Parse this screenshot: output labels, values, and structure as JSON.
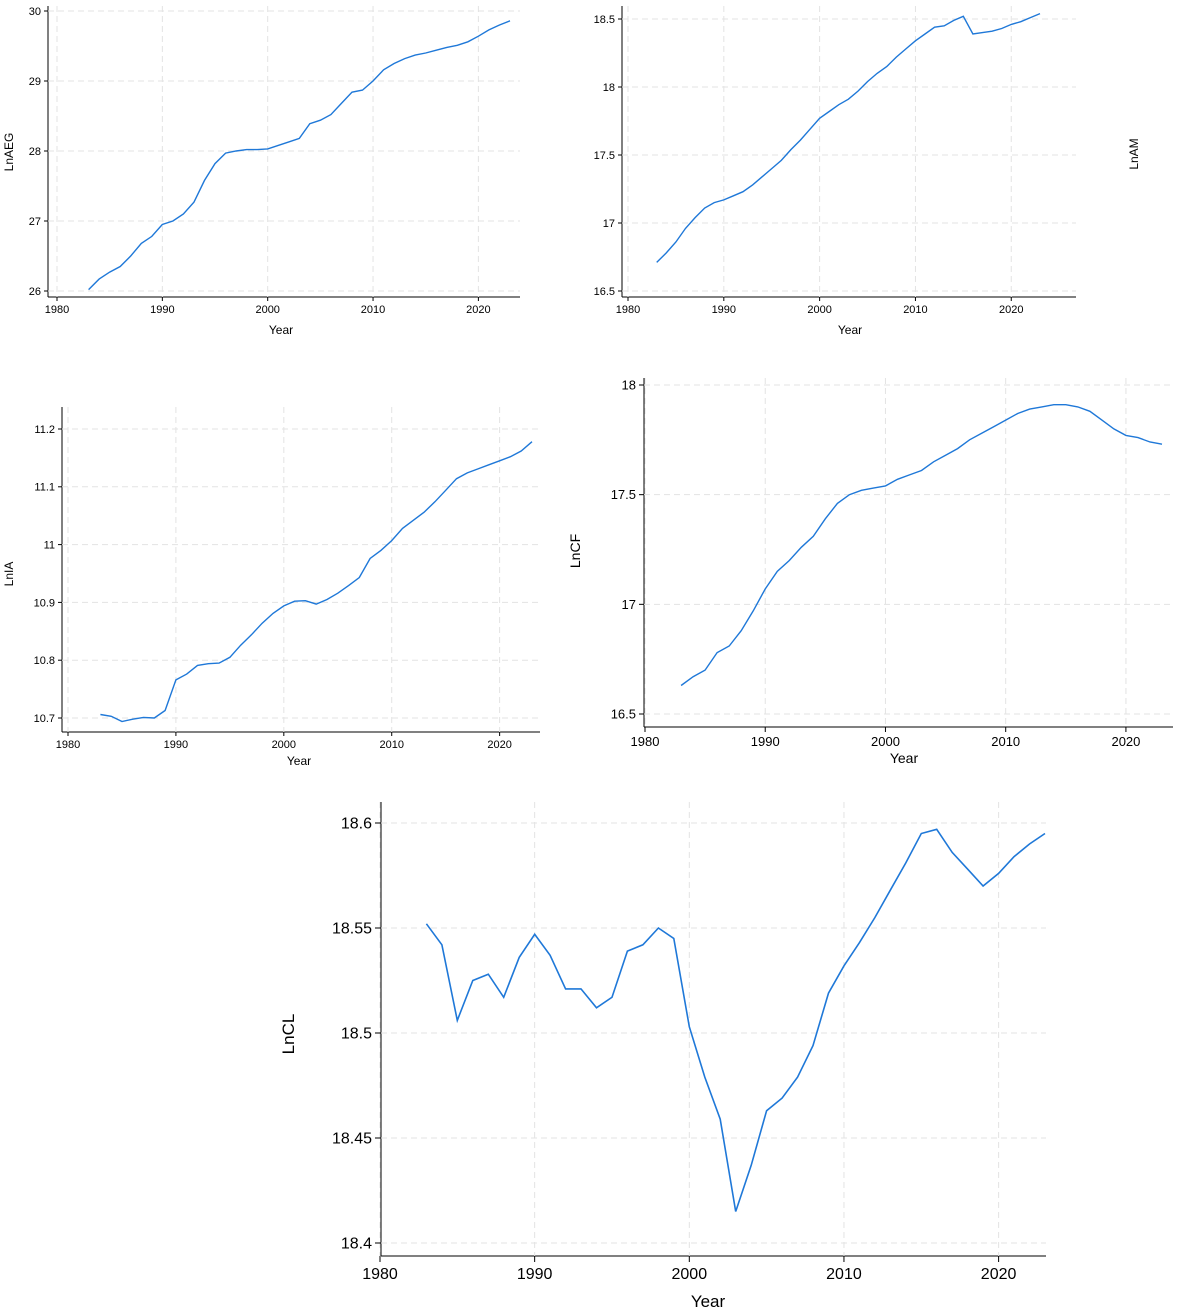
{
  "chart_data": [
    {
      "type": "line",
      "xlabel": "Year",
      "ylabel": "LnAEG",
      "xlim": [
        1980,
        2023
      ],
      "ylim": [
        26,
        30
      ],
      "xticks": [
        1980,
        1990,
        2000,
        2010,
        2020
      ],
      "yticks": [
        26,
        27,
        28,
        29,
        30
      ],
      "ytick_labels": [
        "26",
        "27",
        "28",
        "29",
        "30"
      ],
      "grid": true,
      "color": "#1f78d8",
      "x": [
        1983,
        1984,
        1985,
        1986,
        1987,
        1988,
        1989,
        1990,
        1991,
        1992,
        1993,
        1994,
        1995,
        1996,
        1997,
        1998,
        1999,
        2000,
        2001,
        2002,
        2003,
        2004,
        2005,
        2006,
        2007,
        2008,
        2009,
        2010,
        2011,
        2012,
        2013,
        2014,
        2015,
        2016,
        2017,
        2018,
        2019,
        2020,
        2021,
        2022,
        2023
      ],
      "y": [
        26.02,
        26.17,
        26.27,
        26.35,
        26.5,
        26.68,
        26.78,
        26.95,
        27.0,
        27.1,
        27.27,
        27.58,
        27.82,
        27.97,
        28.0,
        28.02,
        28.02,
        28.03,
        28.08,
        28.13,
        28.18,
        28.39,
        28.44,
        28.52,
        28.68,
        28.84,
        28.87,
        29.0,
        29.16,
        29.25,
        29.32,
        29.37,
        29.4,
        29.44,
        29.48,
        29.51,
        29.56,
        29.64,
        29.73,
        29.8,
        29.86
      ]
    },
    {
      "type": "line",
      "xlabel": "Year",
      "ylabel": "LnAM",
      "xlim": [
        1980,
        2023
      ],
      "ylim": [
        16.5,
        18.5
      ],
      "xticks": [
        1980,
        1990,
        2000,
        2010,
        2020
      ],
      "yticks": [
        16.5,
        17,
        17.5,
        18,
        18.5
      ],
      "ytick_labels": [
        "16.5",
        "17",
        "17.5",
        "18",
        "18.5"
      ],
      "grid": true,
      "color": "#1f78d8",
      "x": [
        1983,
        1984,
        1985,
        1986,
        1987,
        1988,
        1989,
        1990,
        1991,
        1992,
        1993,
        1994,
        1995,
        1996,
        1997,
        1998,
        1999,
        2000,
        2001,
        2002,
        2003,
        2004,
        2005,
        2006,
        2007,
        2008,
        2009,
        2010,
        2011,
        2012,
        2013,
        2014,
        2015,
        2016,
        2017,
        2018,
        2019,
        2020,
        2021,
        2022,
        2023
      ],
      "y": [
        16.71,
        16.78,
        16.86,
        16.96,
        17.04,
        17.11,
        17.15,
        17.17,
        17.2,
        17.23,
        17.28,
        17.34,
        17.4,
        17.46,
        17.54,
        17.61,
        17.69,
        17.77,
        17.82,
        17.87,
        17.91,
        17.97,
        18.04,
        18.1,
        18.15,
        18.22,
        18.28,
        18.34,
        18.39,
        18.44,
        18.45,
        18.49,
        18.52,
        18.39,
        18.4,
        18.41,
        18.43,
        18.46,
        18.48,
        18.51,
        18.54
      ]
    },
    {
      "type": "line",
      "xlabel": "Year",
      "ylabel": "LnIA",
      "xlim": [
        1980,
        2023
      ],
      "ylim": [
        10.7,
        11.2
      ],
      "xticks": [
        1980,
        1990,
        2000,
        2010,
        2020
      ],
      "yticks": [
        10.7,
        10.8,
        10.9,
        11,
        11.1,
        11.2
      ],
      "ytick_labels": [
        "10.7",
        "10.8",
        "10.9",
        "11",
        "11.1",
        "11.2"
      ],
      "grid": true,
      "color": "#1f78d8",
      "x": [
        1983,
        1984,
        1985,
        1986,
        1987,
        1988,
        1989,
        1990,
        1991,
        1992,
        1993,
        1994,
        1995,
        1996,
        1997,
        1998,
        1999,
        2000,
        2001,
        2002,
        2003,
        2004,
        2005,
        2006,
        2007,
        2008,
        2009,
        2010,
        2011,
        2012,
        2013,
        2014,
        2015,
        2016,
        2017,
        2018,
        2019,
        2020,
        2021,
        2022,
        2023
      ],
      "y": [
        10.706,
        10.703,
        10.694,
        10.698,
        10.701,
        10.7,
        10.713,
        10.766,
        10.776,
        10.791,
        10.794,
        10.795,
        10.805,
        10.826,
        10.844,
        10.864,
        10.881,
        10.894,
        10.902,
        10.903,
        10.897,
        10.905,
        10.916,
        10.929,
        10.943,
        10.976,
        10.99,
        11.007,
        11.028,
        11.042,
        11.056,
        11.074,
        11.094,
        11.114,
        11.124,
        11.131,
        11.138,
        11.145,
        11.152,
        11.162,
        11.178
      ]
    },
    {
      "type": "line",
      "xlabel": "Year",
      "ylabel": "LnCF",
      "xlim": [
        1980,
        2023
      ],
      "ylim": [
        16.5,
        18
      ],
      "xticks": [
        1980,
        1990,
        2000,
        2010,
        2020
      ],
      "yticks": [
        16.5,
        17,
        17.5,
        18
      ],
      "ytick_labels": [
        "16.5",
        "17",
        "17.5",
        "18"
      ],
      "grid": true,
      "color": "#1f78d8",
      "x": [
        1983,
        1984,
        1985,
        1986,
        1987,
        1988,
        1989,
        1990,
        1991,
        1992,
        1993,
        1994,
        1995,
        1996,
        1997,
        1998,
        1999,
        2000,
        2001,
        2002,
        2003,
        2004,
        2005,
        2006,
        2007,
        2008,
        2009,
        2010,
        2011,
        2012,
        2013,
        2014,
        2015,
        2016,
        2017,
        2018,
        2019,
        2020,
        2021,
        2022,
        2023
      ],
      "y": [
        16.63,
        16.67,
        16.7,
        16.78,
        16.81,
        16.88,
        16.97,
        17.07,
        17.15,
        17.2,
        17.26,
        17.31,
        17.39,
        17.46,
        17.5,
        17.52,
        17.53,
        17.54,
        17.57,
        17.59,
        17.61,
        17.65,
        17.68,
        17.71,
        17.75,
        17.78,
        17.81,
        17.84,
        17.87,
        17.89,
        17.9,
        17.91,
        17.91,
        17.9,
        17.88,
        17.84,
        17.8,
        17.77,
        17.76,
        17.74,
        17.73
      ]
    },
    {
      "type": "line",
      "xlabel": "Year",
      "ylabel": "LnCL",
      "xlim": [
        1980,
        2023
      ],
      "ylim": [
        18.4,
        18.6
      ],
      "xticks": [
        1980,
        1990,
        2000,
        2010,
        2020
      ],
      "yticks": [
        18.4,
        18.45,
        18.5,
        18.55,
        18.6
      ],
      "ytick_labels": [
        "18.4",
        "18.45",
        "18.5",
        "18.55",
        "18.6"
      ],
      "grid": true,
      "color": "#1f78d8",
      "x": [
        1983,
        1984,
        1985,
        1986,
        1987,
        1988,
        1989,
        1990,
        1991,
        1992,
        1993,
        1994,
        1995,
        1996,
        1997,
        1998,
        1999,
        2000,
        2001,
        2002,
        2003,
        2004,
        2005,
        2006,
        2007,
        2008,
        2009,
        2010,
        2011,
        2012,
        2013,
        2014,
        2015,
        2016,
        2017,
        2018,
        2019,
        2020,
        2021,
        2022,
        2023
      ],
      "y": [
        18.552,
        18.542,
        18.506,
        18.525,
        18.528,
        18.517,
        18.536,
        18.547,
        18.537,
        18.521,
        18.521,
        18.512,
        18.517,
        18.539,
        18.542,
        18.55,
        18.545,
        18.503,
        18.479,
        18.459,
        18.415,
        18.437,
        18.463,
        18.469,
        18.479,
        18.494,
        18.519,
        18.532,
        18.543,
        18.555,
        18.568,
        18.581,
        18.595,
        18.597,
        18.586,
        18.578,
        18.57,
        18.576,
        18.584,
        18.59,
        18.595
      ]
    }
  ]
}
